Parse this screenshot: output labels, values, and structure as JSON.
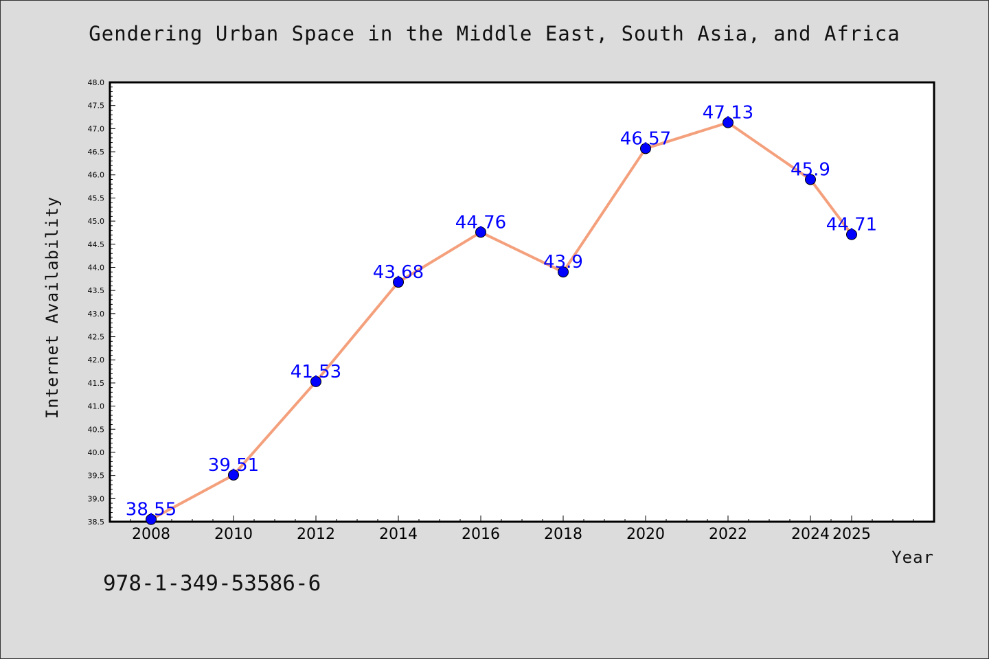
{
  "chart_data": {
    "type": "line",
    "title": "Gendering Urban Space in the Middle East, South Asia, and Africa",
    "xlabel": "Year",
    "ylabel": "Internet Availability",
    "x": [
      2008,
      2010,
      2012,
      2014,
      2016,
      2018,
      2020,
      2022,
      2024,
      2025
    ],
    "x_tick_labels": [
      "2008",
      "2010",
      "2012",
      "2014",
      "2016",
      "2018",
      "2020",
      "2022",
      "2024",
      "2025"
    ],
    "values": [
      38.55,
      39.51,
      41.53,
      43.68,
      44.76,
      43.9,
      46.57,
      47.13,
      45.9,
      44.71
    ],
    "point_labels": [
      "38.55",
      "39.51",
      "41.53",
      "43.68",
      "44.76",
      "43.9",
      "46.57",
      "47.13",
      "45.9",
      "44.71"
    ],
    "y_tick_labels": [
      "38.5",
      "39.0",
      "39.5",
      "40.0",
      "40.5",
      "41.0",
      "41.5",
      "42.0",
      "42.5",
      "43.0",
      "43.5",
      "44.0",
      "44.5",
      "45.0",
      "45.5",
      "46.0",
      "46.5",
      "47.0",
      "47.5",
      "48.0"
    ],
    "ylim": [
      38.5,
      48.0
    ],
    "grid": false,
    "line_color": "#f4a07c",
    "marker_color": "#0000ff",
    "label_color": "#0000ff"
  },
  "footer": {
    "isbn": "978-1-349-53586-6"
  }
}
